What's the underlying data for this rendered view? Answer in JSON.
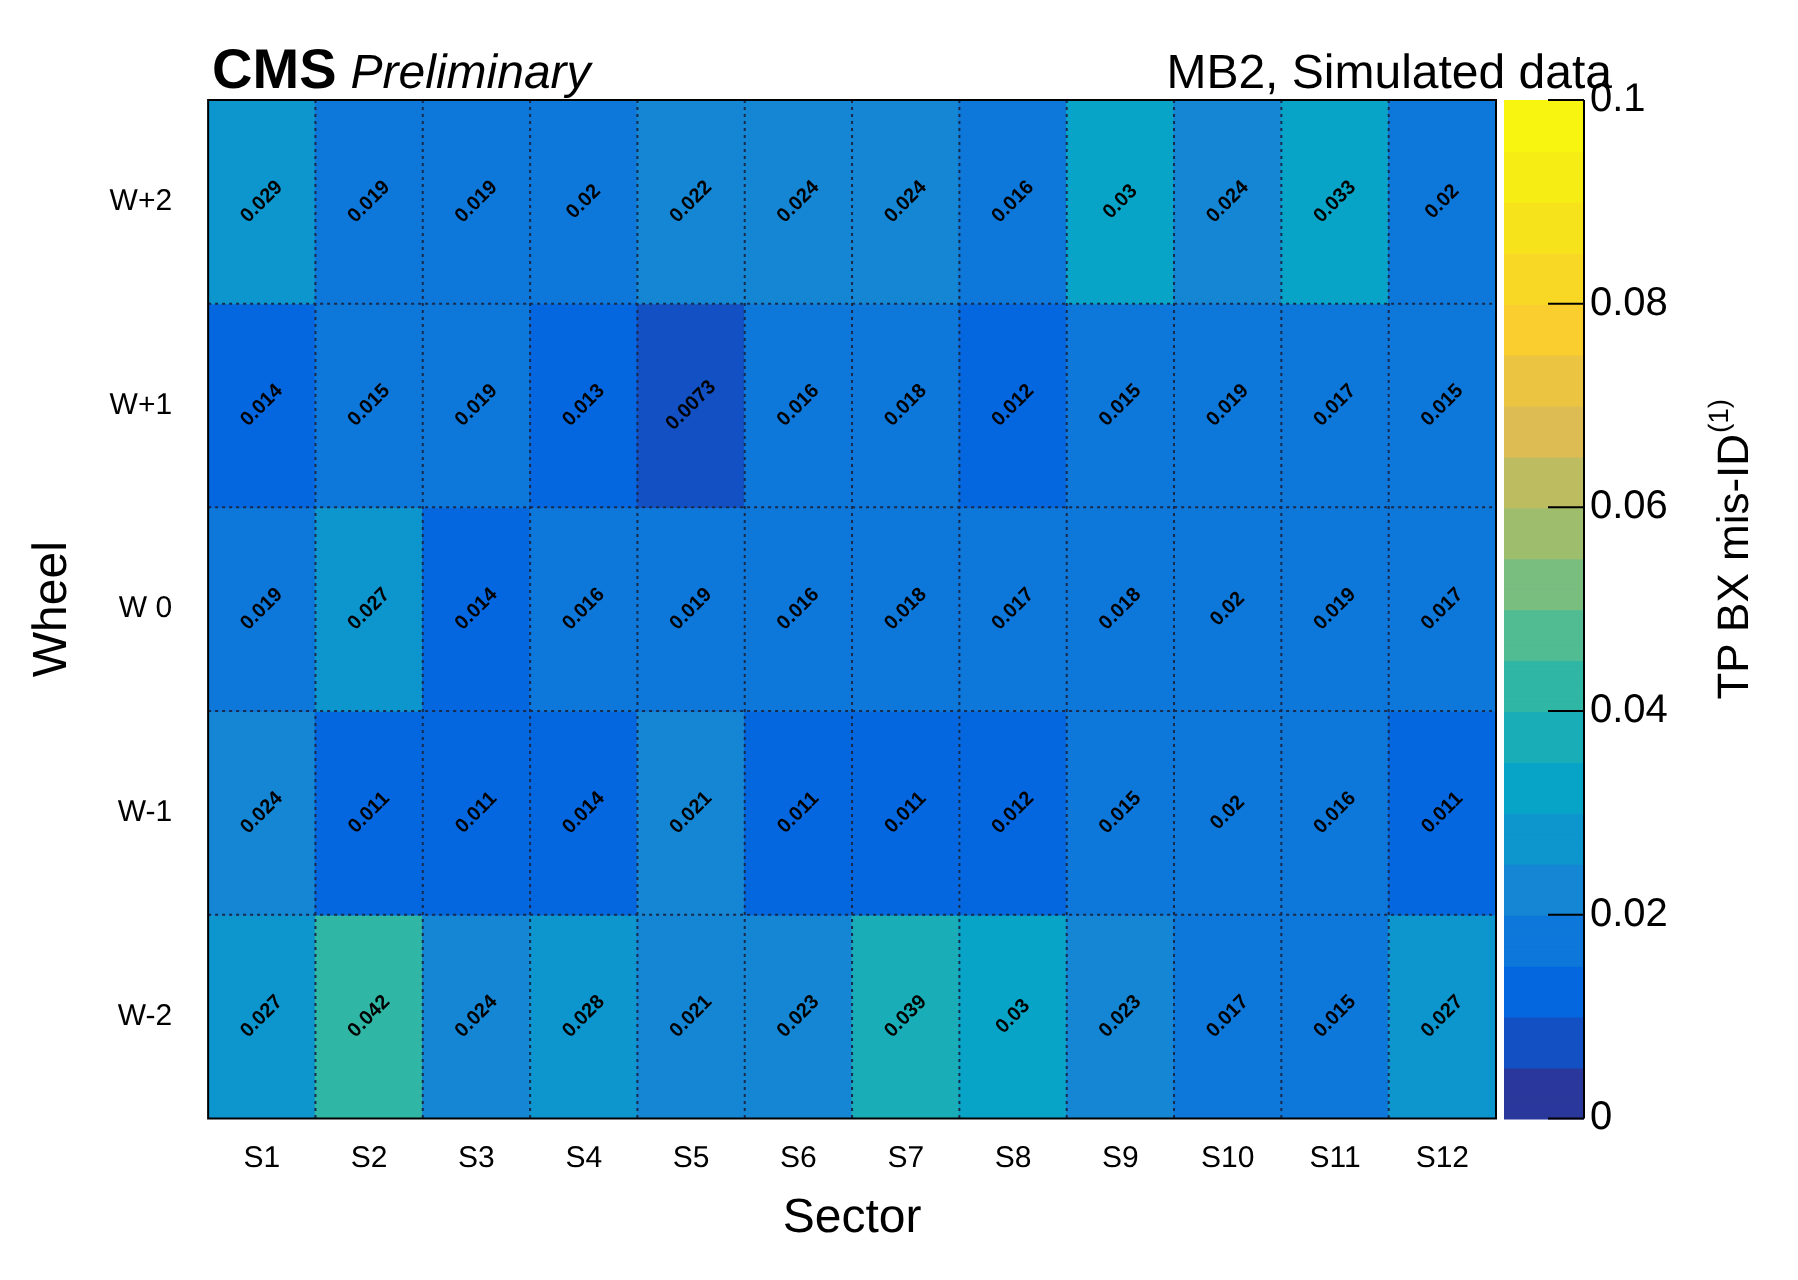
{
  "chart_data": {
    "type": "heatmap",
    "title": "CMS",
    "subtitle": "Preliminary",
    "xlabel": "Sector",
    "ylabel": "Wheel",
    "clabel": "TP BX mis-ID$^{(1)}$",
    "annotations": [
      "MB2, Simulated data"
    ],
    "categories": [
      "S1",
      "S2",
      "S3",
      "S4",
      "S5",
      "S6",
      "S7",
      "S8",
      "S9",
      "S10",
      "S11",
      "S12"
    ],
    "y_categories": [
      "W+2",
      "W+1",
      "W 0",
      "W-1",
      "W-2"
    ],
    "cells": [
      [
        0.029,
        0.019,
        0.019,
        0.02,
        0.022,
        0.024,
        0.024,
        0.016,
        0.03,
        0.024,
        0.033,
        0.02
      ],
      [
        0.014,
        0.015,
        0.019,
        0.013,
        0.0073,
        0.016,
        0.018,
        0.012,
        0.015,
        0.019,
        0.017,
        0.015
      ],
      [
        0.019,
        0.027,
        0.014,
        0.016,
        0.019,
        0.016,
        0.018,
        0.017,
        0.018,
        0.02,
        0.019,
        0.017
      ],
      [
        0.024,
        0.011,
        0.011,
        0.014,
        0.021,
        0.011,
        0.011,
        0.012,
        0.015,
        0.02,
        0.016,
        0.011
      ],
      [
        0.027,
        0.042,
        0.024,
        0.028,
        0.021,
        0.023,
        0.039,
        0.03,
        0.023,
        0.017,
        0.015,
        0.027
      ]
    ],
    "clim": [
      0,
      0.1
    ],
    "cticks": [
      0,
      0.02,
      0.04,
      0.06,
      0.08,
      0.1
    ],
    "data_labels": true,
    "grid": true
  }
}
